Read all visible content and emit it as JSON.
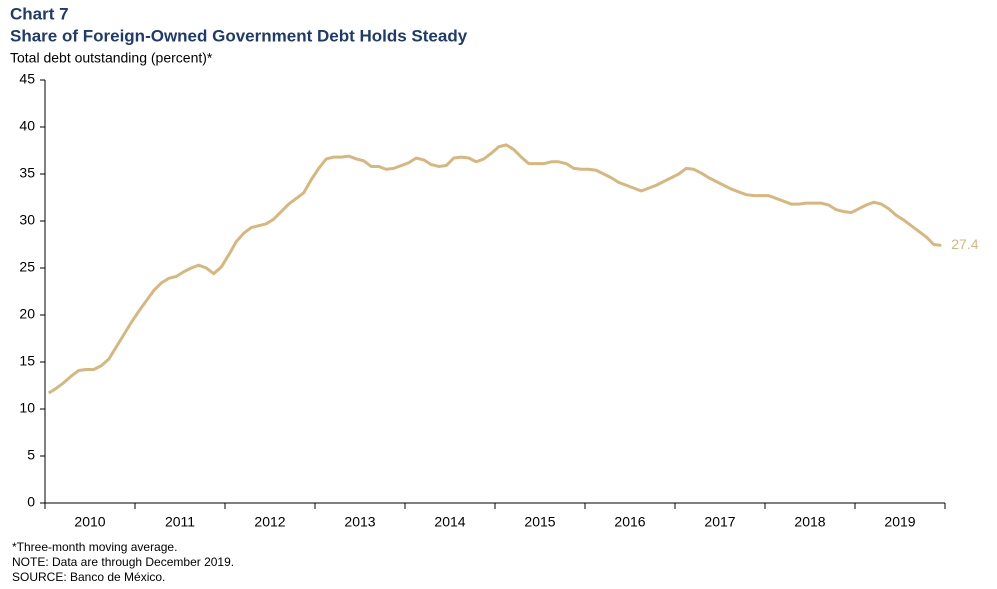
{
  "chart_data": {
    "type": "line",
    "label": "Chart 7",
    "title": "Share of Foreign-Owned Government Debt Holds Steady",
    "y_label": "Total debt outstanding (percent)*",
    "notes": [
      "*Three-month  moving average.",
      "NOTE: Data are through December 2019.",
      "SOURCE: Banco de México."
    ],
    "categories": [
      null,
      null,
      null,
      null,
      null,
      null,
      "2010",
      null,
      null,
      null,
      null,
      null,
      null,
      null,
      null,
      null,
      null,
      null,
      "2011",
      null,
      null,
      null,
      null,
      null,
      null,
      null,
      null,
      null,
      null,
      null,
      "2012",
      null,
      null,
      null,
      null,
      null,
      null,
      null,
      null,
      null,
      null,
      null,
      "2013",
      null,
      null,
      null,
      null,
      null,
      null,
      null,
      null,
      null,
      null,
      null,
      "2014",
      null,
      null,
      null,
      null,
      null,
      null,
      null,
      null,
      null,
      null,
      null,
      "2015",
      null,
      null,
      null,
      null,
      null,
      null,
      null,
      null,
      null,
      null,
      null,
      "2016",
      null,
      null,
      null,
      null,
      null,
      null,
      null,
      null,
      null,
      null,
      null,
      "2017",
      null,
      null,
      null,
      null,
      null,
      null,
      null,
      null,
      null,
      null,
      null,
      "2018",
      null,
      null,
      null,
      null,
      null,
      null,
      null,
      null,
      null,
      null,
      null,
      "2019",
      null,
      null,
      null,
      null,
      null
    ],
    "values": [
      11.7,
      12.2,
      12.8,
      13.5,
      14.1,
      14.2,
      14.2,
      14.6,
      15.3,
      16.6,
      17.9,
      19.2,
      20.4,
      21.5,
      22.6,
      23.4,
      23.9,
      24.1,
      24.6,
      25.0,
      25.3,
      25.0,
      24.4,
      25.1,
      26.4,
      27.8,
      28.7,
      29.3,
      29.5,
      29.7,
      30.2,
      31.0,
      31.8,
      32.4,
      33.0,
      34.4,
      35.6,
      36.6,
      36.8,
      36.8,
      36.9,
      36.6,
      36.4,
      35.8,
      35.8,
      35.5,
      35.6,
      35.9,
      36.2,
      36.7,
      36.5,
      36.0,
      35.8,
      35.9,
      36.7,
      36.8,
      36.7,
      36.3,
      36.6,
      37.2,
      37.9,
      38.1,
      37.6,
      36.8,
      36.1,
      36.1,
      36.1,
      36.3,
      36.3,
      36.1,
      35.6,
      35.5,
      35.5,
      35.4,
      35.0,
      34.6,
      34.1,
      33.8,
      33.5,
      33.2,
      33.5,
      33.8,
      34.2,
      34.6,
      35.0,
      35.6,
      35.5,
      35.1,
      34.6,
      34.2,
      33.8,
      33.4,
      33.1,
      32.8,
      32.7,
      32.7,
      32.7,
      32.4,
      32.1,
      31.8,
      31.8,
      31.9,
      31.9,
      31.9,
      31.7,
      31.2,
      31.0,
      30.9,
      31.3,
      31.7,
      32.0,
      31.8,
      31.3,
      30.6,
      30.1,
      29.5,
      28.9,
      28.3,
      27.5,
      27.4
    ],
    "color": "#d7b77e",
    "ylim": [
      0,
      45
    ],
    "yticks": [
      0,
      5,
      10,
      15,
      20,
      25,
      30,
      35,
      40,
      45
    ],
    "grid": false
  }
}
